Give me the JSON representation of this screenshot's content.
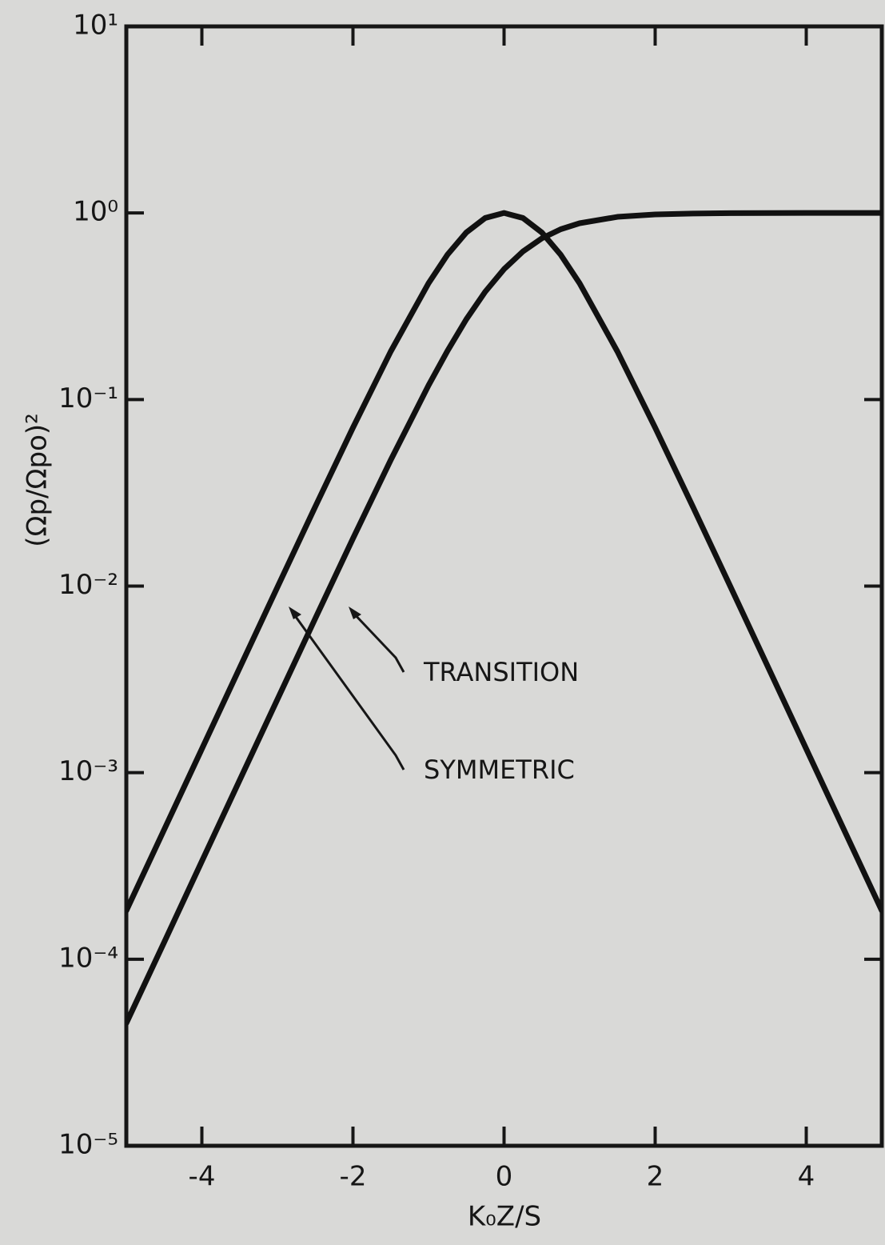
{
  "chart_data": {
    "type": "line",
    "x_label": "K₀Z/S",
    "y_label": "(Ωp/Ωpo)²",
    "x": [
      -5,
      -4.5,
      -4,
      -3.5,
      -3,
      -2.5,
      -2,
      -1.5,
      -1,
      -0.75,
      -0.5,
      -0.25,
      0,
      0.25,
      0.5,
      0.75,
      1,
      1.5,
      2,
      2.5,
      3,
      3.5,
      4,
      4.5,
      5
    ],
    "series": [
      {
        "name": "TRANSITION",
        "color": "#111111",
        "values": [
          4.54e-05,
          0.000123,
          0.000335,
          0.000911,
          0.00247,
          0.00669,
          0.018,
          0.0474,
          0.119,
          0.182,
          0.269,
          0.378,
          0.5,
          0.622,
          0.731,
          0.818,
          0.881,
          0.953,
          0.982,
          0.993,
          0.998,
          0.999,
          1.0,
          1.0,
          1.0
        ]
      },
      {
        "name": "SYMMETRIC",
        "color": "#111111",
        "values": [
          0.000182,
          0.000494,
          0.00134,
          0.00364,
          0.00987,
          0.0266,
          0.0707,
          0.181,
          0.42,
          0.597,
          0.786,
          0.94,
          1.0,
          0.94,
          0.786,
          0.597,
          0.42,
          0.181,
          0.0707,
          0.0266,
          0.00987,
          0.00364,
          0.00134,
          0.000494,
          0.000182
        ]
      }
    ],
    "xlim": [
      -5,
      5
    ],
    "xticks": [
      -4,
      -2,
      0,
      2,
      4
    ],
    "ylim": [
      1e-05,
      10
    ],
    "ylog": true,
    "yticks": [
      {
        "value": 10,
        "label": "10¹"
      },
      {
        "value": 1,
        "label": "10⁰"
      },
      {
        "value": 0.1,
        "label": "10⁻¹"
      },
      {
        "value": 0.01,
        "label": "10⁻²"
      },
      {
        "value": 0.001,
        "label": "10⁻³"
      },
      {
        "value": 0.0001,
        "label": "10⁻⁴"
      },
      {
        "value": 1e-05,
        "label": "10⁻⁵"
      }
    ],
    "grid": false
  }
}
